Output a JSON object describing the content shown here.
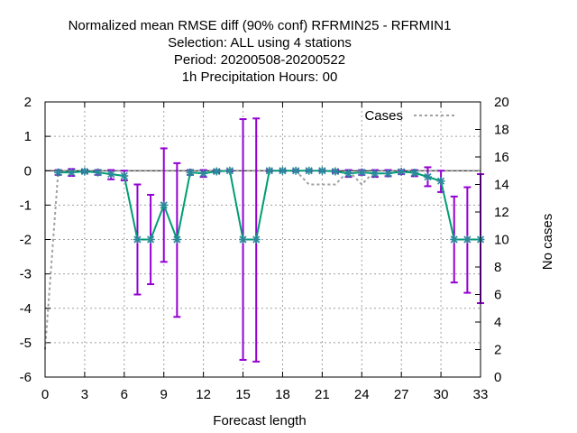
{
  "chart_data": {
    "type": "line",
    "title_lines": [
      "Normalized mean RMSE diff (90% conf) RFRMIN25 - RFRMIN1",
      "Selection: ALL using     4 stations",
      "Period: 20200508-20200522",
      "1h Precipitation   Hours:  00"
    ],
    "xlabel": "Forecast length",
    "ylabel_right": "No cases",
    "xlim": [
      0,
      33
    ],
    "ylim": [
      -6,
      2
    ],
    "y2lim": [
      0,
      20
    ],
    "xticks": [
      "0",
      "3",
      "6",
      "9",
      "12",
      "15",
      "18",
      "21",
      "24",
      "27",
      "30",
      "33"
    ],
    "xtick_values": [
      0,
      3,
      6,
      9,
      12,
      15,
      18,
      21,
      24,
      27,
      30,
      33
    ],
    "yticks": [
      "2",
      "1",
      "0",
      "-1",
      "-2",
      "-3",
      "-4",
      "-5",
      "-6"
    ],
    "ytick_values": [
      2,
      1,
      0,
      -1,
      -2,
      -3,
      -4,
      -5,
      -6
    ],
    "y2ticks": [
      "20",
      "18",
      "16",
      "14",
      "12",
      "10",
      "8",
      "6",
      "4",
      "2",
      "0"
    ],
    "y2tick_values": [
      20,
      18,
      16,
      14,
      12,
      10,
      8,
      6,
      4,
      2,
      0
    ],
    "grid": true,
    "legend_position": "top-right",
    "colors": {
      "line": "#009e73",
      "marker": "#2a8a9a",
      "errorbar": "#9400d3",
      "cases": "#a0a0a0",
      "zero_line": "#000000"
    },
    "series": [
      {
        "x": [
          1,
          2,
          3,
          4,
          5,
          6,
          7,
          8,
          9,
          10,
          11,
          12,
          13,
          14,
          15,
          16,
          17,
          18,
          19,
          20,
          21,
          22,
          23,
          24,
          25,
          26,
          27,
          28,
          29,
          30,
          31,
          32,
          33
        ],
        "values": [
          -0.05,
          -0.05,
          -0.02,
          -0.05,
          -0.1,
          -0.15,
          -2,
          -2,
          -1,
          -2,
          -0.05,
          -0.08,
          -0.02,
          0,
          -2,
          -2,
          0,
          0,
          0,
          0,
          0,
          -0.02,
          -0.08,
          -0.05,
          -0.08,
          -0.08,
          -0.03,
          -0.06,
          -0.18,
          -0.3,
          -2,
          -2,
          -2
        ],
        "err_low": [
          -0.12,
          -0.15,
          -0.06,
          -0.12,
          -0.25,
          -0.28,
          -3.6,
          -3.3,
          -2.65,
          -4.25,
          -0.12,
          -0.18,
          -0.06,
          -0.02,
          -5.5,
          -5.55,
          -0.02,
          -0.02,
          -0.02,
          -0.02,
          -0.02,
          -0.06,
          -0.18,
          -0.12,
          -0.18,
          -0.16,
          -0.1,
          -0.16,
          -0.45,
          -0.62,
          -3.25,
          -3.55,
          -3.85
        ],
        "err_high": [
          0.02,
          0.05,
          0.02,
          0.02,
          0.02,
          0.0,
          -0.4,
          -0.7,
          0.65,
          0.22,
          0.02,
          0.02,
          0.02,
          0.02,
          1.5,
          1.52,
          0.02,
          0.02,
          0.02,
          0.02,
          0.02,
          0.02,
          0.02,
          0.02,
          0.02,
          0.02,
          0.02,
          0.02,
          0.1,
          0.0,
          -0.75,
          -0.48,
          -0.1
        ]
      },
      {
        "name": "Cases",
        "x": [
          0,
          1,
          2,
          3,
          4,
          5,
          6,
          7,
          8,
          9,
          10,
          11,
          12,
          13,
          14,
          15,
          16,
          17,
          18,
          19,
          20,
          21,
          22,
          23,
          24,
          25,
          26,
          27,
          28,
          29,
          30,
          31,
          32,
          33
        ],
        "values": [
          2,
          15,
          15,
          15,
          15,
          15,
          15,
          15,
          15,
          15,
          15,
          15,
          15,
          15,
          15,
          15,
          15,
          15,
          15,
          15,
          14,
          14,
          14,
          15,
          14,
          15,
          15,
          15,
          15,
          15,
          15,
          15,
          15,
          15
        ]
      }
    ]
  }
}
